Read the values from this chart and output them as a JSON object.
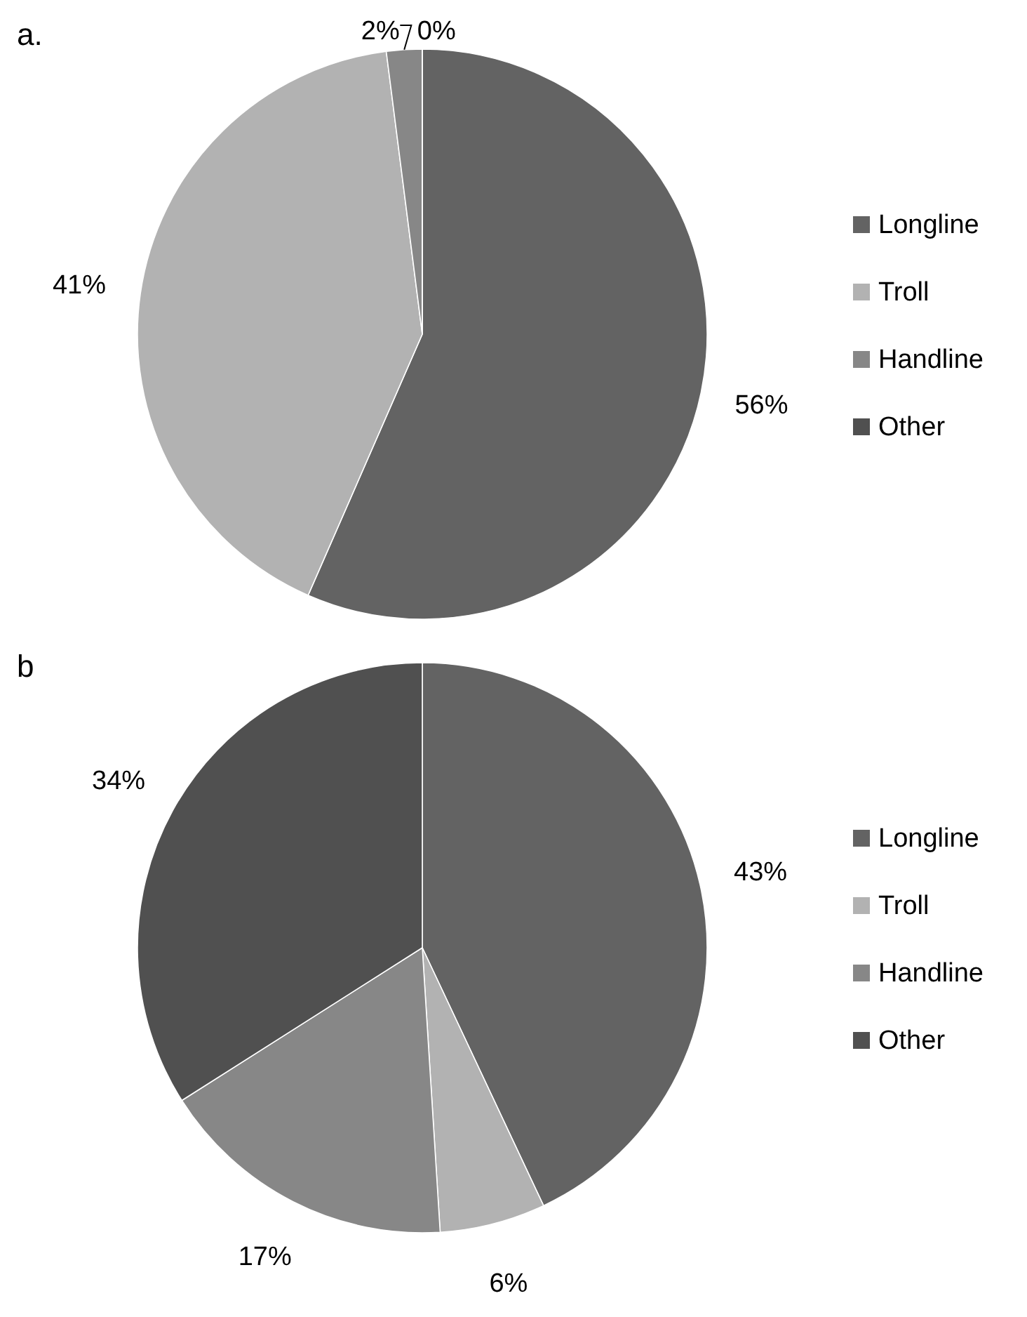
{
  "chart_data": [
    {
      "type": "pie",
      "title": "a.",
      "categories": [
        "Longline",
        "Troll",
        "Handline",
        "Other"
      ],
      "values": [
        56,
        41,
        2,
        0
      ],
      "value_labels": [
        "56%",
        "41%",
        "2%",
        "0%"
      ],
      "colors": [
        "#636363",
        "#b2b2b2",
        "#878787",
        "#505050"
      ],
      "legend": "right"
    },
    {
      "type": "pie",
      "title": "b",
      "categories": [
        "Longline",
        "Troll",
        "Handline",
        "Other"
      ],
      "values": [
        43,
        6,
        17,
        34
      ],
      "value_labels": [
        "43%",
        "6%",
        "17%",
        "34%"
      ],
      "colors": [
        "#636363",
        "#b2b2b2",
        "#878787",
        "#505050"
      ],
      "legend": "right"
    }
  ]
}
